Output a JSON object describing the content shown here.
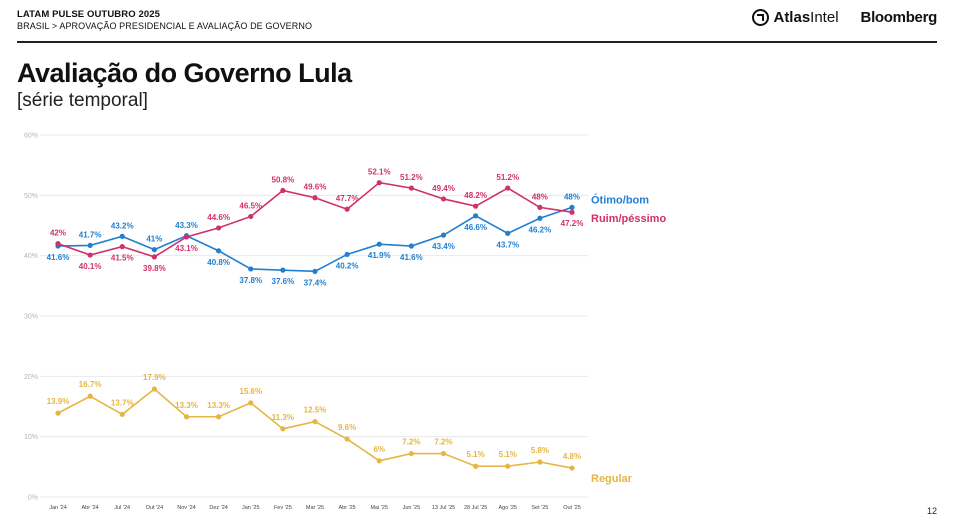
{
  "header": {
    "kicker": "LATAM PULSE OUTUBRO 2025",
    "breadcrumb": "BRASIL > APROVAÇÃO PRESIDENCIAL E AVALIAÇÃO DE GOVERNO",
    "brand_atlas_bold": "Atlas",
    "brand_atlas_light": "Intel",
    "brand_bloomberg": "Bloomberg"
  },
  "page_number": "12",
  "chart_data": {
    "type": "line",
    "title": "Avaliação do Governo Lula",
    "subtitle": "[série temporal]",
    "x": [
      "Jan '24",
      "Abr '24",
      "Jul '24",
      "Out '24",
      "Nov '24",
      "Dez '24",
      "Jan '25",
      "Fev '25",
      "Mar '25",
      "Abr '25",
      "Mai '25",
      "Jun '25",
      "13 Jul '25",
      "28 Jul '25",
      "Ago '25",
      "Set '25",
      "Out '25"
    ],
    "yticks": [
      "0%",
      "10%",
      "20%",
      "30%",
      "40%",
      "50%",
      "60%"
    ],
    "ylim": [
      0,
      60
    ],
    "grid": true,
    "legend": "end-of-line labels",
    "series": [
      {
        "name": "Ótimo/bom",
        "color": "#1f7fd1",
        "values": [
          41.6,
          41.7,
          43.2,
          41,
          43.3,
          40.8,
          37.8,
          37.6,
          37.4,
          40.2,
          41.9,
          41.6,
          43.4,
          46.6,
          43.7,
          46.2,
          48
        ],
        "labels": [
          "41.6%",
          "41.7%",
          "43.2%",
          "41%",
          "43.3%",
          "40.8%",
          "37.8%",
          "37.6%",
          "37.4%",
          "40.2%",
          "41.9%",
          "41.6%",
          "43.4%",
          "46.6%",
          "43.7%",
          "46.2%",
          "48%"
        ]
      },
      {
        "name": "Ruim/péssimo",
        "color": "#d1306a",
        "values": [
          42,
          40.1,
          41.5,
          39.8,
          43.1,
          44.6,
          46.5,
          50.8,
          49.6,
          47.7,
          52.1,
          51.2,
          49.4,
          48.2,
          51.2,
          48,
          47.2
        ],
        "labels": [
          "42%",
          "40.1%",
          "41.5%",
          "39.8%",
          "43.1%",
          "44.6%",
          "46.5%",
          "50.8%",
          "49.6%",
          "47.7%",
          "52.1%",
          "51.2%",
          "49.4%",
          "48.2%",
          "51.2%",
          "48%",
          "47.2%"
        ]
      },
      {
        "name": "Regular",
        "color": "#e6b543",
        "values": [
          13.9,
          16.7,
          13.7,
          17.9,
          13.3,
          13.3,
          15.6,
          11.3,
          12.5,
          9.6,
          6,
          7.2,
          7.2,
          5.1,
          5.1,
          5.8,
          4.8
        ],
        "labels": [
          "13.9%",
          "16.7%",
          "13.7%",
          "17.9%",
          "13.3%",
          "13.3%",
          "15.6%",
          "11.3%",
          "12.5%",
          "9.6%",
          "6%",
          "7.2%",
          "7.2%",
          "5.1%",
          "5.1%",
          "5.8%",
          "4.8%"
        ]
      }
    ]
  }
}
